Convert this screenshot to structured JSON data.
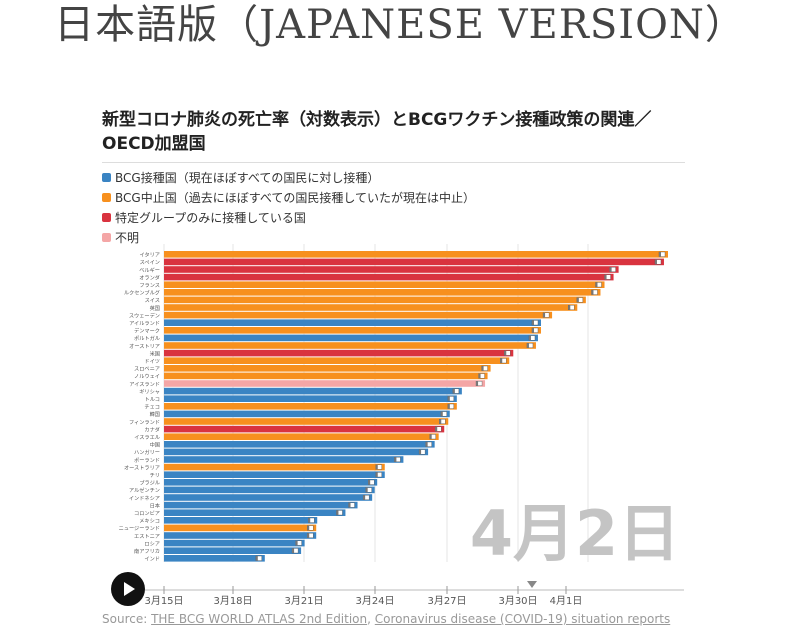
{
  "page_title": "日本語版（JAPANESE VERSION）",
  "chart_title": "新型コロナ肺炎の死亡率（対数表示）とBCGワクチン接種政策の関連／OECD加盟国",
  "legend": [
    {
      "label": "BCG接種国（現在ほぼすべての国民に対し接種）",
      "color": "#3a84c3"
    },
    {
      "label": "BCG中止国（過去にほぼすべての国民接種していたが現在は中止）",
      "color": "#f7901e"
    },
    {
      "label": "特定グループのみに接種している国",
      "color": "#d9333f"
    },
    {
      "label": "不明",
      "color": "#f4a6a6"
    }
  ],
  "date_label": "4月2日",
  "source": {
    "prefix": "Source: ",
    "link1": "THE BCG WORLD ATLAS 2nd Edition",
    "sep": ", ",
    "link2": "Coronavirus disease (COVID-19) situation reports"
  },
  "chart_data": {
    "type": "bar",
    "orientation": "horizontal",
    "title": "新型コロナ肺炎の死亡率（対数表示）とBCGワクチン接種政策の関連／OECD加盟国",
    "timeline_ticks": [
      "3月15日",
      "3月18日",
      "3月21日",
      "3月24日",
      "3月27日",
      "3月30日",
      "4月1日"
    ],
    "current_date": "4月2日",
    "category_colors": {
      "current": "#3a84c3",
      "stopped": "#f7901e",
      "specific": "#d9333f",
      "unknown": "#f4a6a6"
    },
    "bars": [
      {
        "name": "イタリア",
        "value": 1.0,
        "group": "stopped"
      },
      {
        "name": "スペイン",
        "value": 0.992,
        "group": "specific"
      },
      {
        "name": "ベルギー",
        "value": 0.902,
        "group": "specific"
      },
      {
        "name": "オランダ",
        "value": 0.892,
        "group": "specific"
      },
      {
        "name": "フランス",
        "value": 0.874,
        "group": "stopped"
      },
      {
        "name": "ルクセンブルグ",
        "value": 0.866,
        "group": "stopped"
      },
      {
        "name": "スイス",
        "value": 0.837,
        "group": "stopped"
      },
      {
        "name": "英国",
        "value": 0.82,
        "group": "stopped"
      },
      {
        "name": "スウェーデン",
        "value": 0.77,
        "group": "stopped"
      },
      {
        "name": "アイルランド",
        "value": 0.748,
        "group": "current"
      },
      {
        "name": "デンマーク",
        "value": 0.748,
        "group": "stopped"
      },
      {
        "name": "ポルトガル",
        "value": 0.742,
        "group": "current"
      },
      {
        "name": "オーストリア",
        "value": 0.738,
        "group": "stopped"
      },
      {
        "name": "米国",
        "value": 0.693,
        "group": "specific"
      },
      {
        "name": "ドイツ",
        "value": 0.685,
        "group": "stopped"
      },
      {
        "name": "スロベニア",
        "value": 0.648,
        "group": "stopped"
      },
      {
        "name": "ノルウェイ",
        "value": 0.642,
        "group": "stopped"
      },
      {
        "name": "アイスランド",
        "value": 0.637,
        "group": "unknown"
      },
      {
        "name": "ギリシャ",
        "value": 0.591,
        "group": "current"
      },
      {
        "name": "トルコ",
        "value": 0.581,
        "group": "current"
      },
      {
        "name": "チェコ",
        "value": 0.581,
        "group": "stopped"
      },
      {
        "name": "韓国",
        "value": 0.567,
        "group": "current"
      },
      {
        "name": "フィンランド",
        "value": 0.564,
        "group": "stopped"
      },
      {
        "name": "カナダ",
        "value": 0.556,
        "group": "specific"
      },
      {
        "name": "イスラエル",
        "value": 0.545,
        "group": "stopped"
      },
      {
        "name": "中国",
        "value": 0.537,
        "group": "current"
      },
      {
        "name": "ハンガリー",
        "value": 0.524,
        "group": "current"
      },
      {
        "name": "ポーランド",
        "value": 0.475,
        "group": "current"
      },
      {
        "name": "オーストラリア",
        "value": 0.438,
        "group": "stopped"
      },
      {
        "name": "チリ",
        "value": 0.438,
        "group": "current"
      },
      {
        "name": "ブラジル",
        "value": 0.423,
        "group": "current"
      },
      {
        "name": "アルゼンチン",
        "value": 0.418,
        "group": "current"
      },
      {
        "name": "インドネシア",
        "value": 0.413,
        "group": "current"
      },
      {
        "name": "日本",
        "value": 0.384,
        "group": "current"
      },
      {
        "name": "コロンビア",
        "value": 0.36,
        "group": "current"
      },
      {
        "name": "メキシコ",
        "value": 0.304,
        "group": "current"
      },
      {
        "name": "ニュージーランド",
        "value": 0.302,
        "group": "stopped"
      },
      {
        "name": "エストニア",
        "value": 0.302,
        "group": "current"
      },
      {
        "name": "ロシア",
        "value": 0.279,
        "group": "current"
      },
      {
        "name": "南アフリカ",
        "value": 0.272,
        "group": "current"
      },
      {
        "name": "インド",
        "value": 0.2,
        "group": "current"
      }
    ]
  }
}
